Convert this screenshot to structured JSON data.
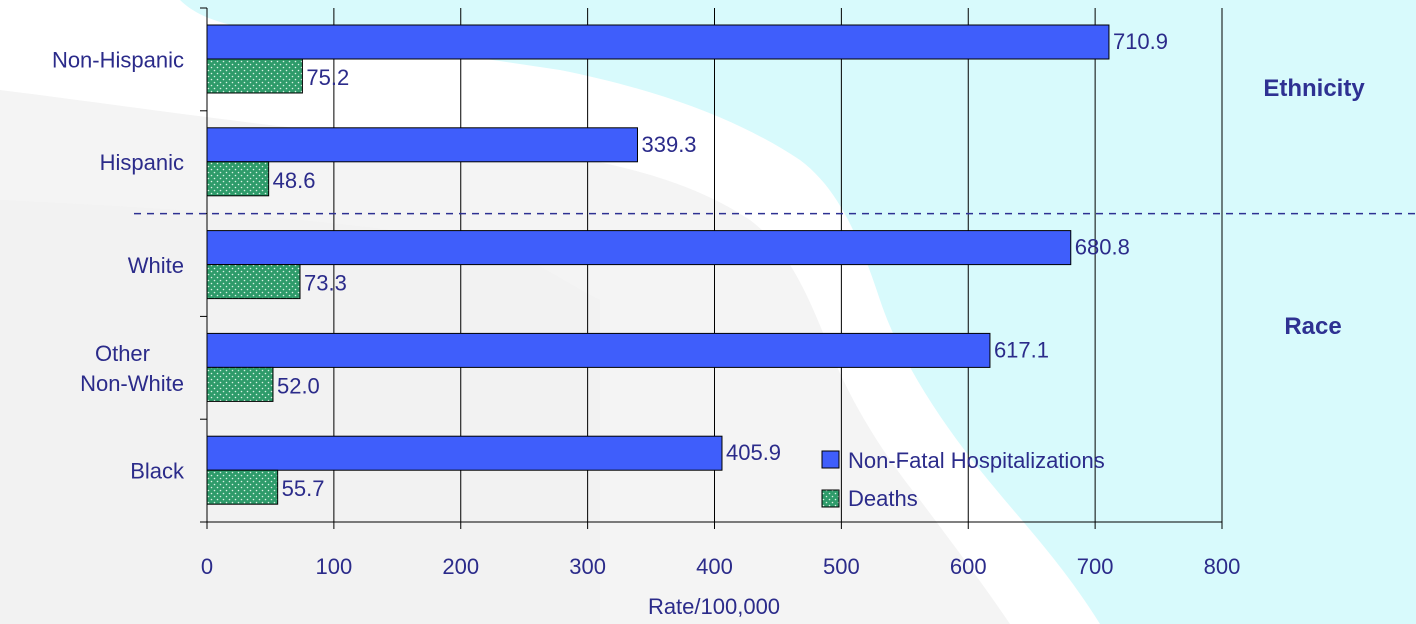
{
  "chart_data": {
    "type": "bar",
    "orientation": "horizontal",
    "categories": [
      "Non-Hispanic",
      "Hispanic",
      "White",
      "Other\nNon-White",
      "Black"
    ],
    "series": [
      {
        "name": "Non-Fatal Hospitalizations",
        "values": [
          710.9,
          339.3,
          680.8,
          617.1,
          405.9
        ],
        "labels": [
          "710.9",
          "339.3",
          "680.8",
          "617.1",
          "405.9"
        ]
      },
      {
        "name": "Deaths",
        "values": [
          75.2,
          48.6,
          73.3,
          52.0,
          55.7
        ],
        "labels": [
          "75.2",
          "48.6",
          "73.3",
          "52.0",
          "55.7"
        ]
      }
    ],
    "xlabel": "Rate/100,000",
    "xlim": [
      0,
      800
    ],
    "xticks": [
      0,
      100,
      200,
      300,
      400,
      500,
      600,
      700,
      800
    ],
    "grid": "vertical",
    "legend_position": "bottom-right",
    "groups": [
      {
        "label": "Ethnicity",
        "categories": [
          "Non-Hispanic",
          "Hispanic"
        ]
      },
      {
        "label": "Race",
        "categories": [
          "White",
          "Other\nNon-White",
          "Black"
        ]
      }
    ],
    "colors": {
      "hospitalizations": "#3f5efb",
      "deaths": "#2e9b6a",
      "text": "#2b2b8a",
      "group_label": "#2e3192",
      "background_map": "#d8fafc"
    }
  }
}
